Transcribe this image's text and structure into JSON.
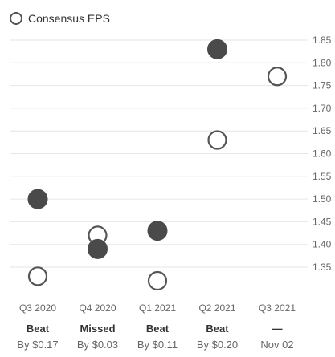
{
  "legend": {
    "label": "Consensus EPS"
  },
  "chart_data": {
    "type": "scatter",
    "categories": [
      "Q3 2020",
      "Q4 2020",
      "Q1 2021",
      "Q2 2021",
      "Q3 2021"
    ],
    "series": [
      {
        "name": "Consensus EPS",
        "style": "hollow",
        "values": [
          1.33,
          1.42,
          1.32,
          1.63,
          1.77
        ]
      },
      {
        "style": "filled",
        "values": [
          1.5,
          1.39,
          1.43,
          1.83,
          null
        ]
      }
    ],
    "results": [
      {
        "status": "Beat",
        "detail": "By $0.17"
      },
      {
        "status": "Missed",
        "detail": "By $0.03"
      },
      {
        "status": "Beat",
        "detail": "By $0.11"
      },
      {
        "status": "Beat",
        "detail": "By $0.20"
      },
      {
        "status": "—",
        "detail": "Nov 02"
      }
    ],
    "yticks": [
      1.35,
      1.4,
      1.45,
      1.5,
      1.55,
      1.6,
      1.65,
      1.7,
      1.75,
      1.8,
      1.85
    ],
    "ylim": [
      1.3,
      1.87
    ],
    "grid": true,
    "legend_position": "top-left",
    "colors": {
      "marker_fill": "#4a4a4a",
      "marker_stroke": "#555555",
      "grid": "#e6e6e6"
    }
  }
}
